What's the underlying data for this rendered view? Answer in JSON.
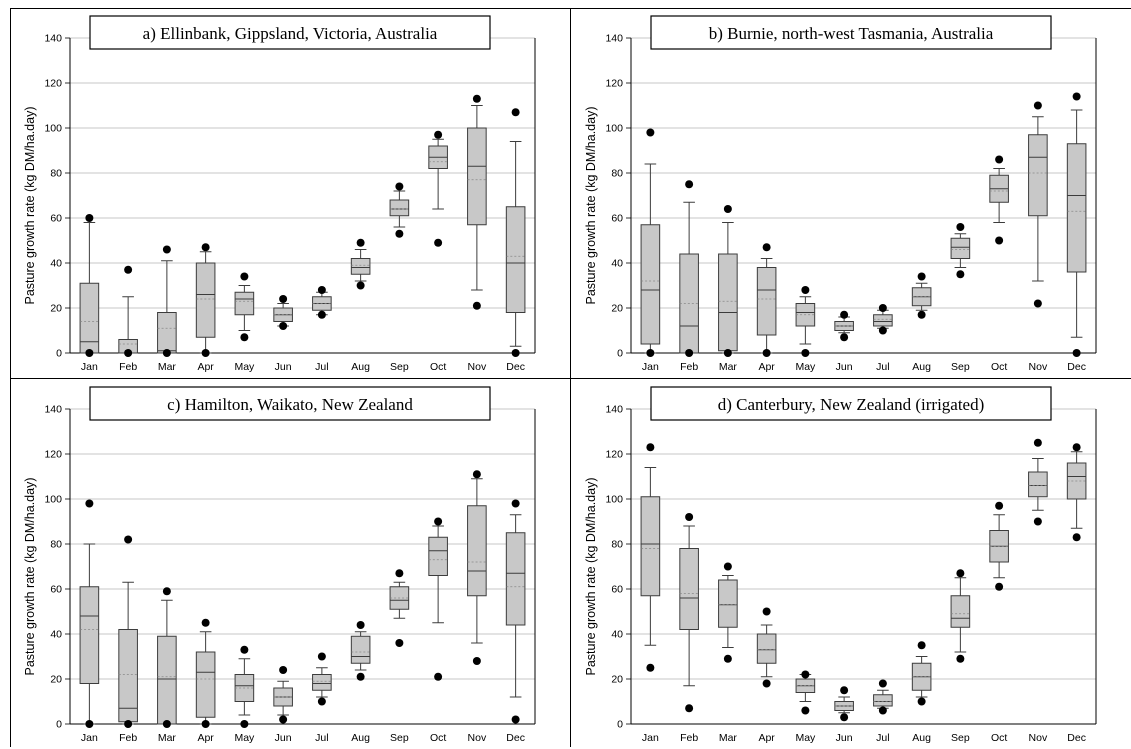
{
  "chart_data": [
    {
      "type": "boxplot",
      "title": "a) Ellinbank, Gippsland, Victoria, Australia",
      "ylabel": "Pasture growth rate (kg DM/ha.day)",
      "xlabel": "",
      "ylim": [
        0,
        140
      ],
      "yticks": [
        0,
        20,
        40,
        60,
        80,
        100,
        120,
        140
      ],
      "grid": true,
      "categories": [
        "Jan",
        "Feb",
        "Mar",
        "Apr",
        "May",
        "Jun",
        "Jul",
        "Aug",
        "Sep",
        "Oct",
        "Nov",
        "Dec"
      ],
      "boxes": [
        {
          "q1": 0,
          "median": 5,
          "q3": 31,
          "whisker_low": 0,
          "whisker_high": 58,
          "mean": 14,
          "outliers": [
            0,
            60
          ]
        },
        {
          "q1": 0,
          "median": 0,
          "q3": 6,
          "whisker_low": 0,
          "whisker_high": 25,
          "mean": 4,
          "outliers": [
            0,
            37
          ]
        },
        {
          "q1": 0,
          "median": 1,
          "q3": 18,
          "whisker_low": 0,
          "whisker_high": 41,
          "mean": 11,
          "outliers": [
            0,
            46
          ]
        },
        {
          "q1": 7,
          "median": 26,
          "q3": 40,
          "whisker_low": 0,
          "whisker_high": 45,
          "mean": 24,
          "outliers": [
            0,
            47
          ]
        },
        {
          "q1": 17,
          "median": 24,
          "q3": 27,
          "whisker_low": 10,
          "whisker_high": 30,
          "mean": 23,
          "outliers": [
            7,
            34
          ]
        },
        {
          "q1": 14,
          "median": 17,
          "q3": 20,
          "whisker_low": 12,
          "whisker_high": 22,
          "mean": 17,
          "outliers": [
            12,
            24
          ]
        },
        {
          "q1": 19,
          "median": 22,
          "q3": 25,
          "whisker_low": 17,
          "whisker_high": 27,
          "mean": 22,
          "outliers": [
            17,
            28
          ]
        },
        {
          "q1": 35,
          "median": 38,
          "q3": 42,
          "whisker_low": 32,
          "whisker_high": 46,
          "mean": 39,
          "outliers": [
            30,
            49
          ]
        },
        {
          "q1": 61,
          "median": 64,
          "q3": 68,
          "whisker_low": 56,
          "whisker_high": 72,
          "mean": 64,
          "outliers": [
            53,
            74
          ]
        },
        {
          "q1": 82,
          "median": 87,
          "q3": 92,
          "whisker_low": 64,
          "whisker_high": 95,
          "mean": 85,
          "outliers": [
            49,
            97
          ]
        },
        {
          "q1": 57,
          "median": 83,
          "q3": 100,
          "whisker_low": 28,
          "whisker_high": 110,
          "mean": 77,
          "outliers": [
            21,
            113
          ]
        },
        {
          "q1": 18,
          "median": 40,
          "q3": 65,
          "whisker_low": 3,
          "whisker_high": 94,
          "mean": 43,
          "outliers": [
            0,
            107
          ]
        }
      ]
    },
    {
      "type": "boxplot",
      "title": "b) Burnie, north-west Tasmania, Australia",
      "ylabel": "Pasture growth rate (kg DM/ha.day)",
      "xlabel": "",
      "ylim": [
        0,
        140
      ],
      "yticks": [
        0,
        20,
        40,
        60,
        80,
        100,
        120,
        140
      ],
      "grid": true,
      "categories": [
        "Jan",
        "Feb",
        "Mar",
        "Apr",
        "May",
        "Jun",
        "Jul",
        "Aug",
        "Sep",
        "Oct",
        "Nov",
        "Dec"
      ],
      "boxes": [
        {
          "q1": 4,
          "median": 28,
          "q3": 57,
          "whisker_low": 0,
          "whisker_high": 84,
          "mean": 32,
          "outliers": [
            0,
            98
          ]
        },
        {
          "q1": 0,
          "median": 12,
          "q3": 44,
          "whisker_low": 0,
          "whisker_high": 67,
          "mean": 22,
          "outliers": [
            0,
            75
          ]
        },
        {
          "q1": 1,
          "median": 18,
          "q3": 44,
          "whisker_low": 0,
          "whisker_high": 58,
          "mean": 23,
          "outliers": [
            0,
            64
          ]
        },
        {
          "q1": 8,
          "median": 28,
          "q3": 38,
          "whisker_low": 0,
          "whisker_high": 42,
          "mean": 24,
          "outliers": [
            0,
            47
          ]
        },
        {
          "q1": 12,
          "median": 18,
          "q3": 22,
          "whisker_low": 4,
          "whisker_high": 25,
          "mean": 17,
          "outliers": [
            0,
            28
          ]
        },
        {
          "q1": 10,
          "median": 12,
          "q3": 14,
          "whisker_low": 9,
          "whisker_high": 16,
          "mean": 12,
          "outliers": [
            7,
            17
          ]
        },
        {
          "q1": 12,
          "median": 14,
          "q3": 17,
          "whisker_low": 11,
          "whisker_high": 19,
          "mean": 15,
          "outliers": [
            10,
            20
          ]
        },
        {
          "q1": 21,
          "median": 25,
          "q3": 29,
          "whisker_low": 19,
          "whisker_high": 31,
          "mean": 25,
          "outliers": [
            17,
            34
          ]
        },
        {
          "q1": 42,
          "median": 47,
          "q3": 51,
          "whisker_low": 38,
          "whisker_high": 53,
          "mean": 46,
          "outliers": [
            35,
            56
          ]
        },
        {
          "q1": 67,
          "median": 73,
          "q3": 79,
          "whisker_low": 58,
          "whisker_high": 82,
          "mean": 72,
          "outliers": [
            50,
            86
          ]
        },
        {
          "q1": 61,
          "median": 87,
          "q3": 97,
          "whisker_low": 32,
          "whisker_high": 105,
          "mean": 80,
          "outliers": [
            22,
            110
          ]
        },
        {
          "q1": 36,
          "median": 70,
          "q3": 93,
          "whisker_low": 7,
          "whisker_high": 108,
          "mean": 63,
          "outliers": [
            0,
            114
          ]
        }
      ]
    },
    {
      "type": "boxplot",
      "title": "c) Hamilton, Waikato, New Zealand",
      "ylabel": "Pasture growth rate (kg DM/ha.day)",
      "xlabel": "",
      "ylim": [
        0,
        140
      ],
      "yticks": [
        0,
        20,
        40,
        60,
        80,
        100,
        120,
        140
      ],
      "grid": true,
      "categories": [
        "Jan",
        "Feb",
        "Mar",
        "Apr",
        "May",
        "Jun",
        "Jul",
        "Aug",
        "Sep",
        "Oct",
        "Nov",
        "Dec"
      ],
      "boxes": [
        {
          "q1": 18,
          "median": 48,
          "q3": 61,
          "whisker_low": 0,
          "whisker_high": 80,
          "mean": 42,
          "outliers": [
            0,
            98
          ]
        },
        {
          "q1": 1,
          "median": 7,
          "q3": 42,
          "whisker_low": 0,
          "whisker_high": 63,
          "mean": 22,
          "outliers": [
            0,
            82
          ]
        },
        {
          "q1": 0,
          "median": 20,
          "q3": 39,
          "whisker_low": 0,
          "whisker_high": 55,
          "mean": 21,
          "outliers": [
            0,
            59
          ]
        },
        {
          "q1": 3,
          "median": 23,
          "q3": 32,
          "whisker_low": 0,
          "whisker_high": 41,
          "mean": 20,
          "outliers": [
            0,
            45
          ]
        },
        {
          "q1": 10,
          "median": 17,
          "q3": 22,
          "whisker_low": 4,
          "whisker_high": 29,
          "mean": 16,
          "outliers": [
            0,
            33
          ]
        },
        {
          "q1": 8,
          "median": 12,
          "q3": 16,
          "whisker_low": 4,
          "whisker_high": 19,
          "mean": 12,
          "outliers": [
            2,
            24
          ]
        },
        {
          "q1": 15,
          "median": 18,
          "q3": 22,
          "whisker_low": 12,
          "whisker_high": 25,
          "mean": 19,
          "outliers": [
            10,
            30
          ]
        },
        {
          "q1": 27,
          "median": 30,
          "q3": 39,
          "whisker_low": 24,
          "whisker_high": 41,
          "mean": 32,
          "outliers": [
            21,
            44
          ]
        },
        {
          "q1": 51,
          "median": 55,
          "q3": 61,
          "whisker_low": 47,
          "whisker_high": 63,
          "mean": 56,
          "outliers": [
            36,
            67
          ]
        },
        {
          "q1": 66,
          "median": 77,
          "q3": 83,
          "whisker_low": 45,
          "whisker_high": 88,
          "mean": 73,
          "outliers": [
            21,
            90
          ]
        },
        {
          "q1": 57,
          "median": 68,
          "q3": 97,
          "whisker_low": 36,
          "whisker_high": 109,
          "mean": 72,
          "outliers": [
            28,
            111
          ]
        },
        {
          "q1": 44,
          "median": 67,
          "q3": 85,
          "whisker_low": 12,
          "whisker_high": 93,
          "mean": 61,
          "outliers": [
            2,
            98
          ]
        }
      ]
    },
    {
      "type": "boxplot",
      "title": "d) Canterbury, New Zealand (irrigated)",
      "ylabel": "Pasture growth rate (kg DM/ha.day)",
      "xlabel": "",
      "ylim": [
        0,
        140
      ],
      "yticks": [
        0,
        20,
        40,
        60,
        80,
        100,
        120,
        140
      ],
      "grid": true,
      "categories": [
        "Jan",
        "Feb",
        "Mar",
        "Apr",
        "May",
        "Jun",
        "Jul",
        "Aug",
        "Sep",
        "Oct",
        "Nov",
        "Dec"
      ],
      "boxes": [
        {
          "q1": 57,
          "median": 80,
          "q3": 101,
          "whisker_low": 35,
          "whisker_high": 114,
          "mean": 78,
          "outliers": [
            25,
            123
          ]
        },
        {
          "q1": 42,
          "median": 56,
          "q3": 78,
          "whisker_low": 17,
          "whisker_high": 88,
          "mean": 58,
          "outliers": [
            7,
            92
          ]
        },
        {
          "q1": 43,
          "median": 53,
          "q3": 64,
          "whisker_low": 34,
          "whisker_high": 66,
          "mean": 53,
          "outliers": [
            29,
            70
          ]
        },
        {
          "q1": 27,
          "median": 33,
          "q3": 40,
          "whisker_low": 21,
          "whisker_high": 44,
          "mean": 33,
          "outliers": [
            18,
            50
          ]
        },
        {
          "q1": 14,
          "median": 17,
          "q3": 20,
          "whisker_low": 10,
          "whisker_high": 22,
          "mean": 17,
          "outliers": [
            6,
            22
          ]
        },
        {
          "q1": 6,
          "median": 8,
          "q3": 10,
          "whisker_low": 5,
          "whisker_high": 12,
          "mean": 8,
          "outliers": [
            3,
            15
          ]
        },
        {
          "q1": 8,
          "median": 10,
          "q3": 13,
          "whisker_low": 7,
          "whisker_high": 15,
          "mean": 10,
          "outliers": [
            6,
            18
          ]
        },
        {
          "q1": 15,
          "median": 21,
          "q3": 27,
          "whisker_low": 12,
          "whisker_high": 30,
          "mean": 21,
          "outliers": [
            10,
            35
          ]
        },
        {
          "q1": 43,
          "median": 47,
          "q3": 57,
          "whisker_low": 32,
          "whisker_high": 65,
          "mean": 49,
          "outliers": [
            29,
            67
          ]
        },
        {
          "q1": 72,
          "median": 79,
          "q3": 86,
          "whisker_low": 65,
          "whisker_high": 93,
          "mean": 79,
          "outliers": [
            61,
            97
          ]
        },
        {
          "q1": 101,
          "median": 106,
          "q3": 112,
          "whisker_low": 95,
          "whisker_high": 118,
          "mean": 106,
          "outliers": [
            90,
            125
          ]
        },
        {
          "q1": 100,
          "median": 110,
          "q3": 116,
          "whisker_low": 87,
          "whisker_high": 121,
          "mean": 108,
          "outliers": [
            83,
            123
          ]
        }
      ]
    }
  ],
  "colors": {
    "box_fill": "#c8c8c8",
    "box_stroke": "#3c3c3c",
    "grid": "#b4b4b4",
    "outlier": "#000000",
    "panel_border": "#000000"
  }
}
